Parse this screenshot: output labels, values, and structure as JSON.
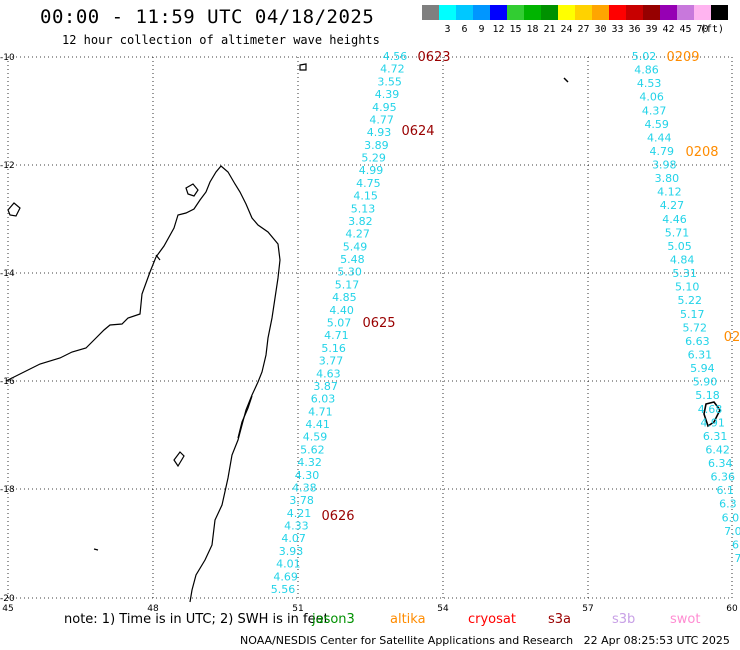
{
  "header": {
    "title": "00:00 - 11:59 UTC 04/18/2025",
    "subtitle": "12 hour collection of altimeter wave heights"
  },
  "legend": {
    "unit": "(ft)",
    "bins": [
      {
        "label": "",
        "color": "#7f7f7f"
      },
      {
        "label": "3",
        "color": "#00ffff"
      },
      {
        "label": "6",
        "color": "#00c8ff"
      },
      {
        "label": "9",
        "color": "#0096ff"
      },
      {
        "label": "12",
        "color": "#0000ff"
      },
      {
        "label": "15",
        "color": "#32cd32"
      },
      {
        "label": "18",
        "color": "#00b400"
      },
      {
        "label": "21",
        "color": "#009100"
      },
      {
        "label": "24",
        "color": "#ffff00"
      },
      {
        "label": "27",
        "color": "#ffd200"
      },
      {
        "label": "30",
        "color": "#ffa500"
      },
      {
        "label": "33",
        "color": "#ff0000"
      },
      {
        "label": "36",
        "color": "#c80000"
      },
      {
        "label": "39",
        "color": "#960000"
      },
      {
        "label": "42",
        "color": "#9600b4"
      },
      {
        "label": "45",
        "color": "#c878dc"
      },
      {
        "label": "70",
        "color": "#ffb4f0"
      },
      {
        "label": "",
        "color": "#000000"
      }
    ]
  },
  "axes": {
    "lon_labels": [
      "45",
      "48",
      "51",
      "54",
      "57",
      "60"
    ],
    "lat_labels": [
      "-10",
      "-12",
      "-14",
      "-16",
      "-18",
      "-20"
    ]
  },
  "tracks": [
    {
      "color": "#990000",
      "passes": [
        {
          "time": "0623"
        },
        {
          "time": "0624"
        },
        {
          "time": "0625"
        },
        {
          "time": "0626"
        }
      ],
      "values": [
        "4.56",
        "4.72",
        "3.55",
        "4.39",
        "4.95",
        "4.77",
        "4.93",
        "3.89",
        "5.29",
        "4.99",
        "4.75",
        "4.15",
        "5.13",
        "3.82",
        "4.27",
        "5.49",
        "5.48",
        "5.30",
        "5.17",
        "4.85",
        "4.40",
        "5.07",
        "4.71",
        "5.16",
        "3.77",
        "4.63",
        "3.87",
        "6.03",
        "4.71",
        "4.41",
        "4.59",
        "5.62",
        "4.32",
        "4.30",
        "4.38",
        "3.78",
        "4.21",
        "4.33",
        "4.07",
        "3.93",
        "4.01",
        "4.69",
        "5.56"
      ]
    },
    {
      "color": "#ff8c00",
      "passes": [
        {
          "time": "0209"
        },
        {
          "time": "0208"
        },
        {
          "time": "02"
        }
      ],
      "values": [
        "5.02",
        "4.86",
        "4.53",
        "4.06",
        "4.37",
        "4.59",
        "4.44",
        "4.79",
        "3.98",
        "3.80",
        "4.12",
        "4.27",
        "4.46",
        "5.71",
        "5.05",
        "4.84",
        "5.31",
        "5.10",
        "5.22",
        "5.17",
        "5.72",
        "6.63",
        "6.31",
        "5.94",
        "5.90",
        "5.18",
        "4.68",
        "4.91",
        "6.31",
        "6.42",
        "6.34",
        "6.36",
        "6.1",
        "6.3",
        "6.0",
        "7.0",
        "6",
        "7"
      ]
    }
  ],
  "note": {
    "text": "note: 1) Time is in UTC; 2) SWH is in feet",
    "satellites": [
      {
        "name": "jason3",
        "color": "#009100"
      },
      {
        "name": "altika",
        "color": "#ff8c00"
      },
      {
        "name": "cryosat",
        "color": "#ff0000"
      },
      {
        "name": "s3a",
        "color": "#990000"
      },
      {
        "name": "s3b",
        "color": "#c8a0e6"
      },
      {
        "name": "swot",
        "color": "#ff8cd2"
      }
    ]
  },
  "footer": {
    "credit": "NOAA/NESDIS Center for Satellite Applications and Research",
    "timestamp": "22 Apr 08:25:53 UTC 2025"
  }
}
